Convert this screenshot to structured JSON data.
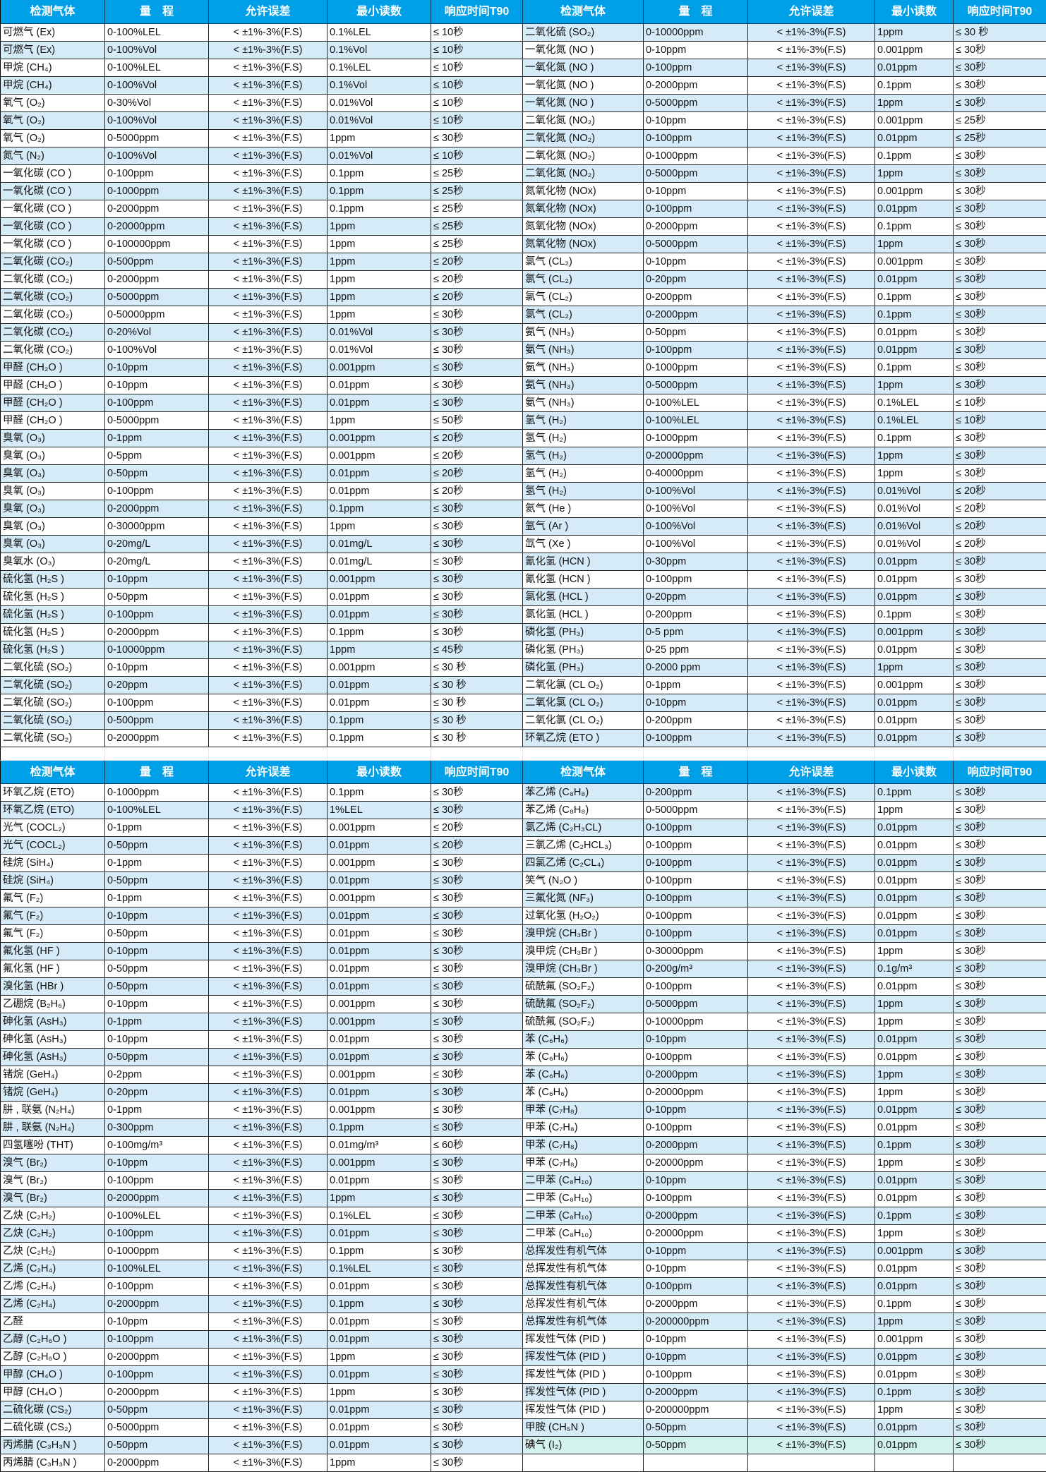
{
  "colors": {
    "header": "#00a0e9",
    "stripe": "#d5ebf8",
    "highlight": "#d3f2ee"
  },
  "headers": [
    "检测气体",
    "量　程",
    "允许误差",
    "最小读数",
    "响应时间T90"
  ],
  "error_text": "<  ±1%-3%(F.S)",
  "sections": [
    {
      "left": [
        [
          "可燃气 (Ex)",
          "0-100%LEL",
          "0.1%LEL",
          "≤ 10秒"
        ],
        [
          "可燃气 (Ex)",
          "0-100%Vol",
          "0.1%Vol",
          "≤ 10秒"
        ],
        [
          "甲烷 (CH₄)",
          "0-100%LEL",
          "0.1%LEL",
          "≤ 10秒"
        ],
        [
          "甲烷 (CH₄)",
          "0-100%Vol",
          "0.1%Vol",
          "≤ 10秒"
        ],
        [
          "氧气 (O₂)",
          "0-30%Vol",
          "0.01%Vol",
          "≤ 10秒"
        ],
        [
          "氧气 (O₂)",
          "0-100%Vol",
          "0.01%Vol",
          "≤ 10秒"
        ],
        [
          "氧气 (O₂)",
          "0-5000ppm",
          "1ppm",
          "≤ 30秒"
        ],
        [
          "氮气 (N₂)",
          "0-100%Vol",
          "0.01%Vol",
          "≤ 10秒"
        ],
        [
          "一氧化碳 (CO )",
          "0-100ppm",
          "0.1ppm",
          "≤ 25秒"
        ],
        [
          "一氧化碳 (CO )",
          "0-1000ppm",
          "0.1ppm",
          "≤ 25秒"
        ],
        [
          "一氧化碳 (CO )",
          "0-2000ppm",
          "0.1ppm",
          "≤ 25秒"
        ],
        [
          "一氧化碳 (CO )",
          "0-20000ppm",
          "1ppm",
          "≤ 25秒"
        ],
        [
          "一氧化碳 (CO )",
          "0-100000ppm",
          "1ppm",
          "≤ 25秒"
        ],
        [
          "二氧化碳 (CO₂)",
          "0-500ppm",
          "1ppm",
          "≤ 20秒"
        ],
        [
          "二氧化碳 (CO₂)",
          "0-2000ppm",
          "1ppm",
          "≤ 20秒"
        ],
        [
          "二氧化碳 (CO₂)",
          "0-5000ppm",
          "1ppm",
          "≤ 20秒"
        ],
        [
          "二氧化碳 (CO₂)",
          "0-50000ppm",
          "1ppm",
          "≤ 30秒"
        ],
        [
          "二氧化碳 (CO₂)",
          "0-20%Vol",
          "0.01%Vol",
          "≤ 30秒"
        ],
        [
          "二氧化碳 (CO₂)",
          "0-100%Vol",
          "0.01%Vol",
          "≤ 30秒"
        ],
        [
          "甲醛 (CH₂O )",
          "0-10ppm",
          "0.001ppm",
          "≤ 30秒"
        ],
        [
          "甲醛 (CH₂O )",
          "0-10ppm",
          "0.01ppm",
          "≤ 30秒"
        ],
        [
          "甲醛 (CH₂O )",
          "0-100ppm",
          "0.01ppm",
          "≤ 30秒"
        ],
        [
          "甲醛 (CH₂O )",
          "0-5000ppm",
          "1ppm",
          "≤ 50秒"
        ],
        [
          "臭氧 (O₃)",
          "0-1ppm",
          "0.001ppm",
          "≤ 20秒"
        ],
        [
          "臭氧 (O₃)",
          "0-5ppm",
          "0.001ppm",
          "≤ 20秒"
        ],
        [
          "臭氧 (O₃)",
          "0-50ppm",
          "0.01ppm",
          "≤ 20秒"
        ],
        [
          "臭氧 (O₃)",
          "0-100ppm",
          "0.01ppm",
          "≤ 20秒"
        ],
        [
          "臭氧 (O₃)",
          "0-2000ppm",
          "0.1ppm",
          "≤ 30秒"
        ],
        [
          "臭氧 (O₃)",
          "0-30000ppm",
          "1ppm",
          "≤ 30秒"
        ],
        [
          "臭氧 (O₃)",
          "0-20mg/L",
          "0.01mg/L",
          "≤ 30秒"
        ],
        [
          "臭氧水 (O₃)",
          "0-20mg/L",
          "0.01mg/L",
          "≤ 30秒"
        ],
        [
          "硫化氢 (H₂S )",
          "0-10ppm",
          "0.001ppm",
          "≤ 30秒"
        ],
        [
          "硫化氢 (H₂S )",
          "0-50ppm",
          "0.01ppm",
          "≤ 30秒"
        ],
        [
          "硫化氢 (H₂S )",
          "0-100ppm",
          "0.01ppm",
          "≤ 30秒"
        ],
        [
          "硫化氢 (H₂S )",
          "0-2000ppm",
          "0.1ppm",
          "≤ 30秒"
        ],
        [
          "硫化氢 (H₂S )",
          "0-10000ppm",
          "1ppm",
          "≤ 45秒"
        ],
        [
          "二氧化硫 (SO₂)",
          "0-10ppm",
          "0.001ppm",
          "≤ 30 秒"
        ],
        [
          "二氧化硫 (SO₂)",
          "0-20ppm",
          "0.01ppm",
          "≤ 30 秒"
        ],
        [
          "二氧化硫 (SO₂)",
          "0-100ppm",
          "0.01ppm",
          "≤ 30 秒"
        ],
        [
          "二氧化硫 (SO₂)",
          "0-500ppm",
          "0.1ppm",
          "≤ 30 秒"
        ],
        [
          "二氧化硫 (SO₂)",
          "0-2000ppm",
          "0.1ppm",
          "≤ 30 秒"
        ]
      ],
      "right": [
        [
          "二氧化硫 (SO₂)",
          "0-10000ppm",
          "1ppm",
          "≤ 30 秒"
        ],
        [
          "一氧化氮 (NO )",
          "0-10ppm",
          "0.001ppm",
          "≤ 30秒"
        ],
        [
          "一氧化氮 (NO )",
          "0-100ppm",
          "0.01ppm",
          "≤ 30秒"
        ],
        [
          "一氧化氮 (NO )",
          "0-2000ppm",
          "0.1ppm",
          "≤ 30秒"
        ],
        [
          "一氧化氮 (NO )",
          "0-5000ppm",
          "1ppm",
          "≤ 30秒"
        ],
        [
          "二氧化氮 (NO₂)",
          "0-10ppm",
          "0.001ppm",
          "≤ 25秒"
        ],
        [
          "二氧化氮 (NO₂)",
          "0-100ppm",
          "0.01ppm",
          "≤ 25秒"
        ],
        [
          "二氧化氮 (NO₂)",
          "0-1000ppm",
          "0.1ppm",
          "≤ 30秒"
        ],
        [
          "二氧化氮 (NO₂)",
          "0-5000ppm",
          "1ppm",
          "≤ 30秒"
        ],
        [
          "氮氧化物 (NOx)",
          "0-10ppm",
          "0.001ppm",
          "≤ 30秒"
        ],
        [
          "氮氧化物 (NOx)",
          "0-100ppm",
          "0.01ppm",
          "≤ 30秒"
        ],
        [
          "氮氧化物 (NOx)",
          "0-2000ppm",
          "0.1ppm",
          "≤ 30秒"
        ],
        [
          "氮氧化物 (NOx)",
          "0-5000ppm",
          "1ppm",
          "≤ 30秒"
        ],
        [
          "氯气 (CL₂)",
          "0-10ppm",
          "0.001ppm",
          "≤ 30秒"
        ],
        [
          "氯气 (CL₂)",
          "0-20ppm",
          "0.01ppm",
          "≤ 30秒"
        ],
        [
          "氯气 (CL₂)",
          "0-200ppm",
          "0.1ppm",
          "≤ 30秒"
        ],
        [
          "氯气 (CL₂)",
          "0-2000ppm",
          "0.1ppm",
          "≤ 30秒"
        ],
        [
          "氨气 (NH₃)",
          "0-50ppm",
          "0.01ppm",
          "≤ 30秒"
        ],
        [
          "氨气 (NH₃)",
          "0-100ppm",
          "0.01ppm",
          "≤ 30秒"
        ],
        [
          "氨气 (NH₃)",
          "0-1000ppm",
          "0.1ppm",
          "≤ 30秒"
        ],
        [
          "氨气 (NH₃)",
          "0-5000ppm",
          "1ppm",
          "≤ 30秒"
        ],
        [
          "氨气 (NH₃)",
          "0-100%LEL",
          "0.1%LEL",
          "≤ 10秒"
        ],
        [
          "氢气 (H₂)",
          "0-100%LEL",
          "0.1%LEL",
          "≤ 10秒"
        ],
        [
          "氢气 (H₂)",
          "0-1000ppm",
          "0.1ppm",
          "≤ 30秒"
        ],
        [
          "氢气 (H₂)",
          "0-20000ppm",
          "1ppm",
          "≤ 30秒"
        ],
        [
          "氢气 (H₂)",
          "0-40000ppm",
          "1ppm",
          "≤ 30秒"
        ],
        [
          "氢气 (H₂)",
          "0-100%Vol",
          "0.01%Vol",
          "≤ 20秒"
        ],
        [
          "氦气 (He )",
          "0-100%Vol",
          "0.01%Vol",
          "≤ 20秒"
        ],
        [
          "氩气 (Ar )",
          "0-100%Vol",
          "0.01%Vol",
          "≤ 20秒"
        ],
        [
          "氙气 (Xe )",
          "0-100%Vol",
          "0.01%Vol",
          "≤ 20秒"
        ],
        [
          "氰化氢 (HCN )",
          "0-30ppm",
          "0.01ppm",
          "≤ 30秒"
        ],
        [
          "氰化氢 (HCN )",
          "0-100ppm",
          "0.01ppm",
          "≤ 30秒"
        ],
        [
          "氯化氢 (HCL )",
          "0-20ppm",
          "0.01ppm",
          "≤ 30秒"
        ],
        [
          "氯化氢 (HCL )",
          "0-200ppm",
          "0.1ppm",
          "≤ 30秒"
        ],
        [
          "磷化氢 (PH₃)",
          "0-5 ppm",
          "0.001ppm",
          "≤ 30秒"
        ],
        [
          "磷化氢 (PH₃)",
          "0-25 ppm",
          "0.01ppm",
          "≤ 30秒"
        ],
        [
          "磷化氢 (PH₃)",
          "0-2000 ppm",
          "1ppm",
          "≤ 30秒"
        ],
        [
          "二氧化氯 (CL O₂)",
          "0-1ppm",
          "0.001ppm",
          "≤ 30秒"
        ],
        [
          "二氧化氯 (CL O₂)",
          "0-10ppm",
          "0.01ppm",
          "≤ 30秒"
        ],
        [
          "二氧化氯 (CL O₂)",
          "0-200ppm",
          "0.01ppm",
          "≤ 30秒"
        ],
        [
          "环氧乙烷 (ETO )",
          "0-100ppm",
          "0.01ppm",
          "≤ 30秒"
        ]
      ]
    },
    {
      "left": [
        [
          "环氧乙烷 (ETO)",
          "0-1000ppm",
          "0.1ppm",
          "≤ 30秒"
        ],
        [
          "环氧乙烷 (ETO)",
          "0-100%LEL",
          "1%LEL",
          "≤ 30秒"
        ],
        [
          "光气 (COCL₂)",
          "0-1ppm",
          "0.001ppm",
          "≤ 20秒"
        ],
        [
          "光气 (COCL₂)",
          "0-50ppm",
          "0.01ppm",
          "≤ 20秒"
        ],
        [
          "硅烷 (SiH₄)",
          "0-1ppm",
          "0.001ppm",
          "≤ 30秒"
        ],
        [
          "硅烷 (SiH₄)",
          "0-50ppm",
          "0.01ppm",
          "≤ 30秒"
        ],
        [
          "氟气 (F₂)",
          "0-1ppm",
          "0.001ppm",
          "≤ 30秒"
        ],
        [
          "氟气 (F₂)",
          "0-10ppm",
          "0.01ppm",
          "≤ 30秒"
        ],
        [
          "氟气 (F₂)",
          "0-50ppm",
          "0.01ppm",
          "≤ 30秒"
        ],
        [
          "氟化氢 (HF )",
          "0-10ppm",
          "0.01ppm",
          "≤ 30秒"
        ],
        [
          "氟化氢 (HF )",
          "0-50ppm",
          "0.01ppm",
          "≤ 30秒"
        ],
        [
          "溴化氢 (HBr )",
          "0-50ppm",
          "0.01ppm",
          "≤ 30秒"
        ],
        [
          "乙硼烷 (B₂H₆)",
          "0-10ppm",
          "0.001ppm",
          "≤ 30秒"
        ],
        [
          "砷化氢 (AsH₃)",
          "0-1ppm",
          "0.001ppm",
          "≤ 30秒"
        ],
        [
          "砷化氢 (AsH₃)",
          "0-10ppm",
          "0.01ppm",
          "≤ 30秒"
        ],
        [
          "砷化氢 (AsH₃)",
          "0-50ppm",
          "0.01ppm",
          "≤ 30秒"
        ],
        [
          "锗烷 (GeH₄)",
          "0-2ppm",
          "0.001ppm",
          "≤ 30秒"
        ],
        [
          "锗烷 (GeH₄)",
          "0-20ppm",
          "0.01ppm",
          "≤ 30秒"
        ],
        [
          "肼 , 联氨 (N₂H₄)",
          "0-1ppm",
          "0.001ppm",
          "≤ 30秒"
        ],
        [
          "肼 , 联氨 (N₂H₄)",
          "0-300ppm",
          "0.1ppm",
          "≤ 30秒"
        ],
        [
          "四氢噻吩 (THT)",
          "0-100mg/m³",
          "0.01mg/m³",
          "≤ 60秒"
        ],
        [
          "溴气 (Br₂)",
          "0-10ppm",
          "0.001ppm",
          "≤ 30秒"
        ],
        [
          "溴气 (Br₂)",
          "0-100ppm",
          "0.01ppm",
          "≤ 30秒"
        ],
        [
          "溴气 (Br₂)",
          "0-2000ppm",
          "1ppm",
          "≤ 30秒"
        ],
        [
          "乙炔 (C₂H₂)",
          "0-100%LEL",
          "0.1%LEL",
          "≤ 30秒"
        ],
        [
          "乙炔 (C₂H₂)",
          "0-100ppm",
          "0.01ppm",
          "≤ 30秒"
        ],
        [
          "乙炔 (C₂H₂)",
          "0-1000ppm",
          "0.1ppm",
          "≤ 30秒"
        ],
        [
          "乙烯 (C₂H₄)",
          "0-100%LEL",
          "0.1%LEL",
          "≤ 30秒"
        ],
        [
          "乙烯 (C₂H₄)",
          "0-100ppm",
          "0.01ppm",
          "≤ 30秒"
        ],
        [
          "乙烯 (C₂H₄)",
          "0-2000ppm",
          "0.1ppm",
          "≤ 30秒"
        ],
        [
          "乙醛",
          "0-10ppm",
          "0.01ppm",
          "≤ 30秒"
        ],
        [
          "乙醇 (C₂H₆O )",
          "0-100ppm",
          "0.01ppm",
          "≤ 30秒"
        ],
        [
          "乙醇 (C₂H₆O )",
          "0-2000ppm",
          "1ppm",
          "≤ 30秒"
        ],
        [
          "甲醇 (CH₄O )",
          "0-100ppm",
          "0.01ppm",
          "≤ 30秒"
        ],
        [
          "甲醇 (CH₄O )",
          "0-2000ppm",
          "1ppm",
          "≤ 30秒"
        ],
        [
          "二硫化碳 (CS₂)",
          "0-50ppm",
          "0.01ppm",
          "≤ 30秒"
        ],
        [
          "二硫化碳 (CS₂)",
          "0-5000ppm",
          "0.01ppm",
          "≤ 30秒"
        ],
        [
          "丙烯腈 (C₃H₃N )",
          "0-50ppm",
          "0.01ppm",
          "≤ 30秒"
        ],
        [
          "丙烯腈 (C₃H₃N )",
          "0-2000ppm",
          "1ppm",
          "≤ 30秒"
        ]
      ],
      "right": [
        [
          "苯乙烯 (C₈H₈)",
          "0-200ppm",
          "0.1ppm",
          "≤ 30秒"
        ],
        [
          "苯乙烯 (C₈H₈)",
          "0-5000ppm",
          "1ppm",
          "≤ 30秒"
        ],
        [
          "氯乙烯 (C₂H₃CL)",
          "0-100ppm",
          "0.01ppm",
          "≤ 30秒"
        ],
        [
          "三氯乙烯 (C₂HCL₃)",
          "0-100ppm",
          "0.01ppm",
          "≤ 30秒"
        ],
        [
          "四氯乙烯 (C₂CL₄)",
          "0-100ppm",
          "0.01ppm",
          "≤ 30秒"
        ],
        [
          "笑气 (N₂O )",
          "0-100ppm",
          "0.01ppm",
          "≤ 30秒"
        ],
        [
          "三氟化氮 (NF₃)",
          "0-100ppm",
          "0.01ppm",
          "≤ 30秒"
        ],
        [
          "过氧化氢 (H₂O₂)",
          "0-100ppm",
          "0.01ppm",
          "≤ 30秒"
        ],
        [
          "溴甲烷 (CH₃Br )",
          "0-100ppm",
          "0.01ppm",
          "≤ 30秒"
        ],
        [
          "溴甲烷 (CH₃Br )",
          "0-30000ppm",
          "1ppm",
          "≤ 30秒"
        ],
        [
          "溴甲烷 (CH₃Br )",
          "0-200g/m³",
          "0.1g/m³",
          "≤ 30秒"
        ],
        [
          "硫酰氟 (SO₂F₂)",
          "0-100ppm",
          "0.01ppm",
          "≤ 30秒"
        ],
        [
          "硫酰氟 (SO₂F₂)",
          "0-5000ppm",
          "1ppm",
          "≤ 30秒"
        ],
        [
          "硫酰氟 (SO₂F₂)",
          "0-10000ppm",
          "1ppm",
          "≤ 30秒"
        ],
        [
          "苯 (C₆H₆)",
          "0-10ppm",
          "0.01ppm",
          "≤ 30秒"
        ],
        [
          "苯 (C₆H₆)",
          "0-100ppm",
          "0.01ppm",
          "≤ 30秒"
        ],
        [
          "苯 (C₆H₆)",
          "0-2000ppm",
          "1ppm",
          "≤ 30秒"
        ],
        [
          "苯 (C₆H₆)",
          "0-20000ppm",
          "1ppm",
          "≤ 30秒"
        ],
        [
          "甲苯 (C₇H₈)",
          "0-10ppm",
          "0.01ppm",
          "≤ 30秒"
        ],
        [
          "甲苯 (C₇H₈)",
          "0-100ppm",
          "0.01ppm",
          "≤ 30秒"
        ],
        [
          "甲苯 (C₇H₈)",
          "0-2000ppm",
          "0.1ppm",
          "≤ 30秒"
        ],
        [
          "甲苯 (C₇H₈)",
          "0-20000ppm",
          "1ppm",
          "≤ 30秒"
        ],
        [
          "二甲苯 (C₈H₁₀)",
          "0-10ppm",
          "0.01ppm",
          "≤ 30秒"
        ],
        [
          "二甲苯 (C₈H₁₀)",
          "0-100ppm",
          "0.01ppm",
          "≤ 30秒"
        ],
        [
          "二甲苯 (C₈H₁₀)",
          "0-2000ppm",
          "0.1ppm",
          "≤ 30秒"
        ],
        [
          "二甲苯 (C₈H₁₀)",
          "0-20000ppm",
          "1ppm",
          "≤ 30秒"
        ],
        [
          "总挥发性有机气体",
          "0-10ppm",
          "0.001ppm",
          "≤ 30秒"
        ],
        [
          "总挥发性有机气体",
          "0-10ppm",
          "0.01ppm",
          "≤ 30秒"
        ],
        [
          "总挥发性有机气体",
          "0-100ppm",
          "0.01ppm",
          "≤ 30秒"
        ],
        [
          "总挥发性有机气体",
          "0-2000ppm",
          "0.1ppm",
          "≤ 30秒"
        ],
        [
          "总挥发性有机气体",
          "0-200000ppm",
          "1ppm",
          "≤ 30秒"
        ],
        [
          "挥发性气体 (PID )",
          "0-10ppm",
          "0.001ppm",
          "≤ 30秒"
        ],
        [
          "挥发性气体 (PID )",
          "0-10ppm",
          "0.01ppm",
          "≤ 30秒"
        ],
        [
          "挥发性气体 (PID )",
          "0-100ppm",
          "0.01ppm",
          "≤ 30秒"
        ],
        [
          "挥发性气体 (PID )",
          "0-2000ppm",
          "0.1ppm",
          "≤ 30秒"
        ],
        [
          "挥发性气体 (PID )",
          "0-200000ppm",
          "1ppm",
          "≤ 30秒"
        ],
        [
          "甲胺 (CH₅N )",
          "0-50ppm",
          "0.01ppm",
          "≤ 30秒"
        ],
        [
          "碘气 (I₂)",
          "0-50ppm",
          "0.01ppm",
          "≤ 30秒"
        ]
      ]
    }
  ]
}
